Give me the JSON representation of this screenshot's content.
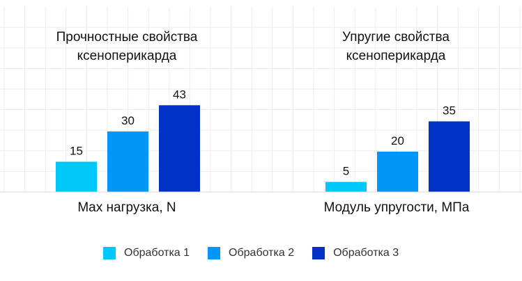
{
  "chart_data": [
    {
      "type": "bar",
      "title": [
        "Прочностные свойства",
        "ксеноперикарда"
      ],
      "xlabel": "Max нагрузка, N",
      "categories": [
        "Обработка 1",
        "Обработка 2",
        "Обработка 3"
      ],
      "values": [
        15,
        30,
        43
      ],
      "ylim": [
        0,
        50
      ],
      "grid": true
    },
    {
      "type": "bar",
      "title": [
        "Упругие свойства",
        "ксеноперикарда"
      ],
      "xlabel": "Модуль упругости, МПа",
      "categories": [
        "Обработка 1",
        "Обработка 2",
        "Обработка 3"
      ],
      "values": [
        5,
        20,
        35
      ],
      "ylim": [
        0,
        40
      ],
      "grid": true
    }
  ],
  "legend": {
    "placement": "bottom",
    "items": [
      {
        "label": "Обработка 1",
        "color": "#00C8FA"
      },
      {
        "label": "Обработка 2",
        "color": "#0096F5"
      },
      {
        "label": "Обработка 3",
        "color": "#0032C8"
      }
    ]
  }
}
